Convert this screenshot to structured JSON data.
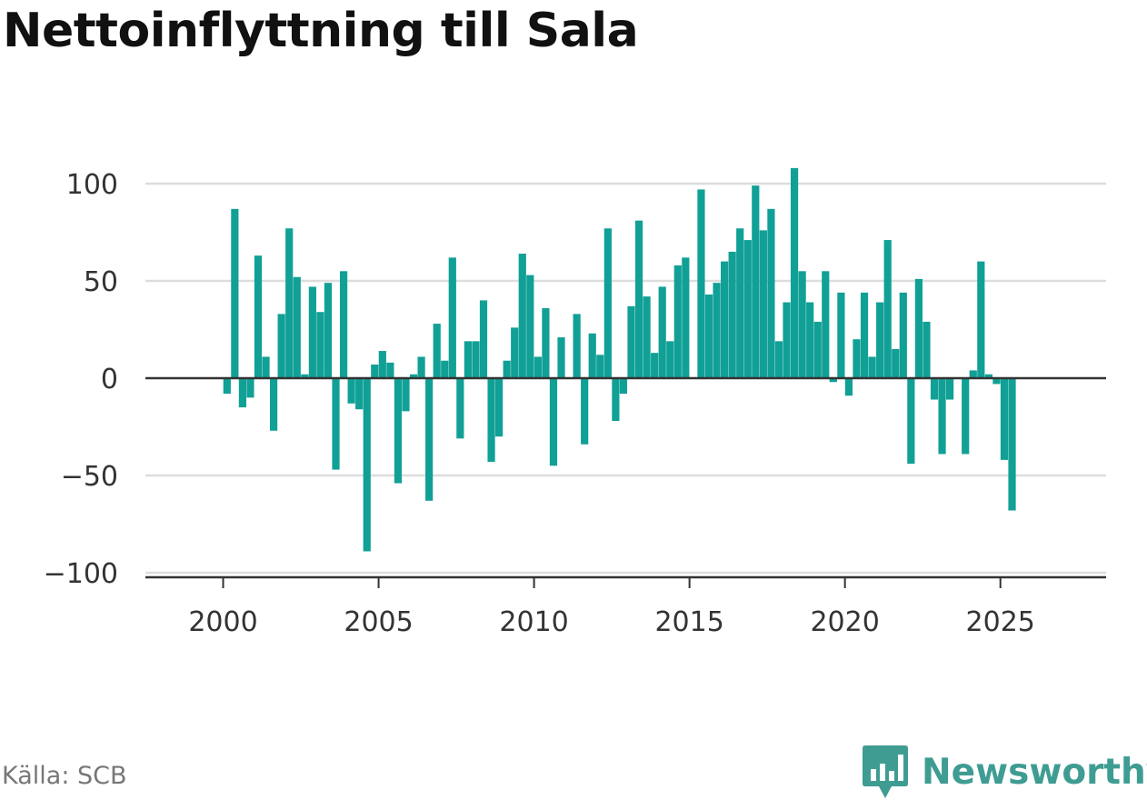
{
  "title": "Nettoinflyttning till Sala",
  "source": "Källa: SCB",
  "brand": {
    "name": "Newsworthy",
    "icon": "newsworthy-logo-icon",
    "color": "#3f9c93"
  },
  "colors": {
    "bar": "#11a096",
    "grid": "#dddddd",
    "zero_line": "#333333",
    "axis": "#333333",
    "title": "#111111",
    "source": "#777777"
  },
  "chart_data": {
    "type": "bar",
    "title": "Nettoinflyttning till Sala",
    "xlabel": "",
    "ylabel": "",
    "ylim": [
      -100,
      110
    ],
    "xlim": [
      1997.5,
      2028.4
    ],
    "yticks": [
      100,
      50,
      0,
      -50,
      -100
    ],
    "ytick_labels": [
      "100",
      "50",
      "0",
      "−50",
      "−100"
    ],
    "xticks": [
      2000,
      2005,
      2010,
      2015,
      2020,
      2025
    ],
    "xtick_labels": [
      "2000",
      "2005",
      "2010",
      "2015",
      "2020",
      "2025"
    ],
    "grid": true,
    "frequency": "quarterly",
    "start": "2000 Q1",
    "series": [
      {
        "values": [
          -8,
          87,
          -15,
          -10,
          63,
          11,
          -27,
          33,
          77,
          52,
          2,
          47,
          34,
          49,
          -47,
          55,
          -13,
          -16,
          -89,
          7,
          14,
          8,
          -54,
          -17,
          2,
          11,
          -63,
          28,
          9,
          62,
          -31,
          19,
          19,
          40,
          -43,
          -30,
          9,
          26,
          64,
          53,
          11,
          36,
          -45,
          21,
          0,
          33,
          -34,
          23,
          12,
          77,
          -22,
          -8,
          37,
          81,
          42,
          13,
          47,
          19,
          58,
          62,
          0,
          97,
          43,
          49,
          60,
          65,
          77,
          71,
          99,
          76,
          87,
          19,
          39,
          108,
          55,
          39,
          29,
          55,
          -2,
          44,
          -9,
          20,
          44,
          11,
          39,
          71,
          15,
          44,
          -44,
          51,
          29,
          -11,
          -39,
          -11,
          0,
          -39,
          4,
          60,
          2,
          -3,
          -42,
          -68
        ]
      }
    ]
  }
}
